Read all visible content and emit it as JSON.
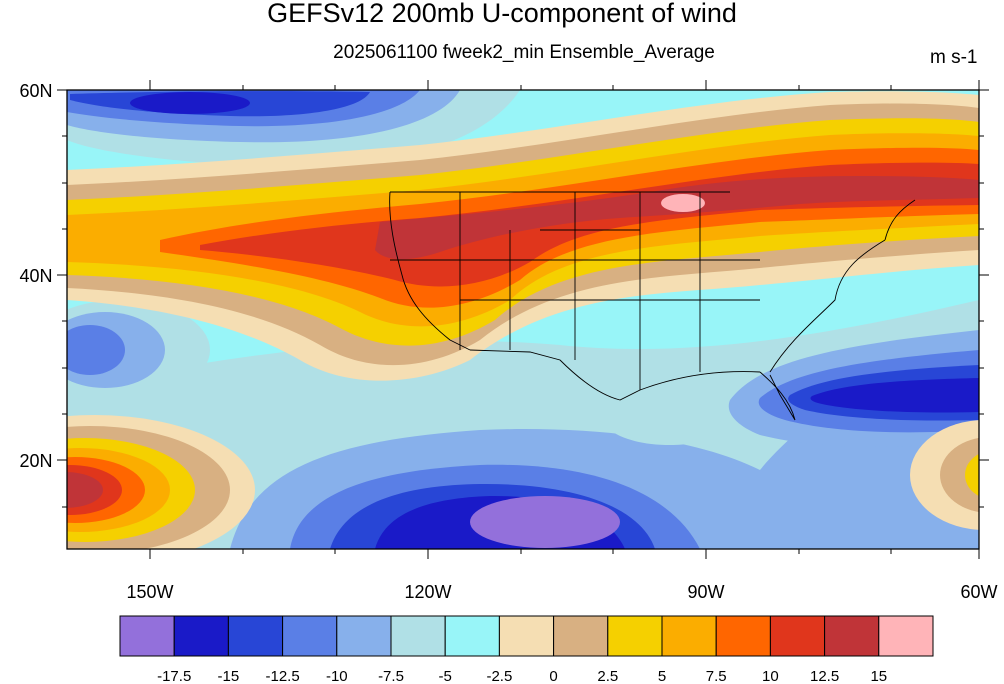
{
  "header": {
    "title": "GEFSv12 200mb U-component of wind",
    "subtitle": "2025061100 fweek2_min Ensemble_Average",
    "units": "m s-1"
  },
  "axes": {
    "lat_labels": [
      "60N",
      "40N",
      "20N"
    ],
    "lon_labels": [
      "150W",
      "120W",
      "90W",
      "60W"
    ]
  },
  "colorbar": {
    "colors": [
      "#9370db",
      "#1a1ac8",
      "#2846d6",
      "#5a7fe6",
      "#87b0eb",
      "#b0e0e6",
      "#98f5f8",
      "#f5deb3",
      "#d8b082",
      "#f5d000",
      "#fbad00",
      "#ff6600",
      "#e0361c",
      "#c03438",
      "#ffb4b8"
    ],
    "labels": [
      "-17.5",
      "-15",
      "-12.5",
      "-10",
      "-7.5",
      "-5",
      "-2.5",
      "0",
      "2.5",
      "5",
      "7.5",
      "10",
      "12.5",
      "15"
    ]
  }
}
